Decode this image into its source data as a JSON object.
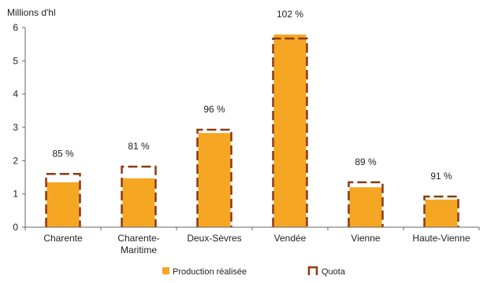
{
  "chart_data": {
    "type": "bar",
    "ylabel": "Millions d'hl",
    "ylim": [
      0,
      6
    ],
    "yticks": [
      "0",
      "1",
      "2",
      "3",
      "4",
      "5",
      "6"
    ],
    "categories": [
      [
        "Charente"
      ],
      [
        "Charente-",
        "Maritime"
      ],
      [
        "Deux-Sèvres"
      ],
      [
        "Vendée"
      ],
      [
        "Vienne"
      ],
      [
        "Haute-Vienne"
      ]
    ],
    "series": [
      {
        "name": "Production réalisée",
        "values": [
          1.35,
          1.47,
          2.83,
          5.79,
          1.2,
          0.83
        ]
      },
      {
        "name": "Quota",
        "values": [
          1.6,
          1.82,
          2.93,
          5.67,
          1.35,
          0.92
        ]
      }
    ],
    "data_labels": [
      "85 %",
      "81 %",
      "96 %",
      "102 %",
      "89 %",
      "91 %"
    ],
    "colors": {
      "production": "#F5A623",
      "quota": "#8B3A12",
      "axis": "#666666"
    },
    "legend": "bottom",
    "grid": false
  }
}
